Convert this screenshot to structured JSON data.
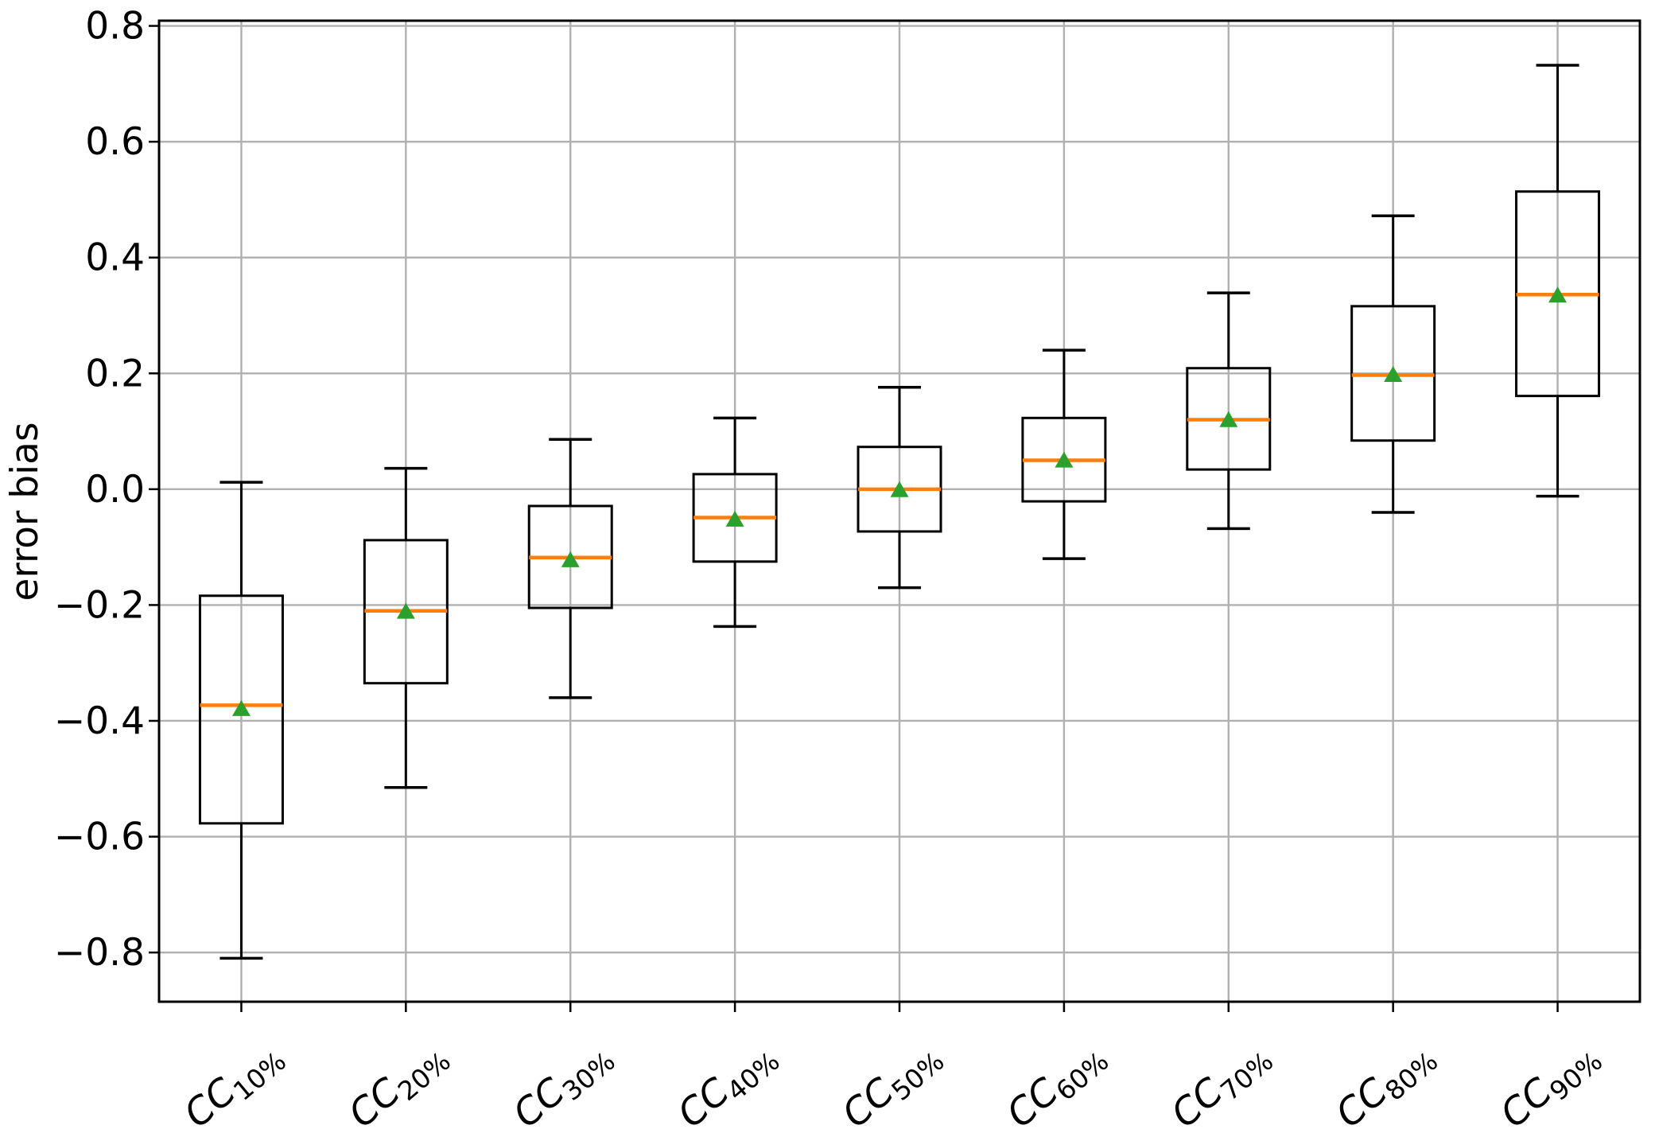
{
  "figure": {
    "background": "#ffffff",
    "title": ""
  },
  "chart_data": {
    "type": "boxplot",
    "title": "",
    "xlabel": "",
    "ylabel": "error bias",
    "grid": true,
    "legend": null,
    "ylim": [
      -0.885,
      0.809
    ],
    "yticks": [
      0.8,
      0.6,
      0.4,
      0.2,
      0.0,
      -0.2,
      -0.4,
      -0.6,
      -0.8
    ],
    "ytick_labels": [
      "0.8",
      "0.6",
      "0.4",
      "0.2",
      "0.0",
      "−0.2",
      "−0.4",
      "−0.6",
      "−0.8"
    ],
    "categories": [
      "CC 10%",
      "CC 20%",
      "CC 30%",
      "CC 40%",
      "CC 50%",
      "CC 60%",
      "CC 70%",
      "CC 80%",
      "CC 90%"
    ],
    "boxes": [
      {
        "label_base": "CC",
        "label_sub": "10%",
        "whislo": -0.81,
        "q1": -0.577,
        "med": -0.373,
        "mean": -0.38,
        "q3": -0.184,
        "whishi": 0.012
      },
      {
        "label_base": "CC",
        "label_sub": "20%",
        "whislo": -0.515,
        "q1": -0.335,
        "med": -0.21,
        "mean": -0.212,
        "q3": -0.088,
        "whishi": 0.036
      },
      {
        "label_base": "CC",
        "label_sub": "30%",
        "whislo": -0.36,
        "q1": -0.205,
        "med": -0.118,
        "mean": -0.123,
        "q3": -0.029,
        "whishi": 0.086
      },
      {
        "label_base": "CC",
        "label_sub": "40%",
        "whislo": -0.237,
        "q1": -0.125,
        "med": -0.049,
        "mean": -0.053,
        "q3": 0.026,
        "whishi": 0.123
      },
      {
        "label_base": "CC",
        "label_sub": "50%",
        "whislo": -0.17,
        "q1": -0.073,
        "med": 0.0,
        "mean": -0.002,
        "q3": 0.073,
        "whishi": 0.176
      },
      {
        "label_base": "CC",
        "label_sub": "60%",
        "whislo": -0.12,
        "q1": -0.021,
        "med": 0.05,
        "mean": 0.049,
        "q3": 0.123,
        "whishi": 0.24
      },
      {
        "label_base": "CC",
        "label_sub": "70%",
        "whislo": -0.068,
        "q1": 0.034,
        "med": 0.12,
        "mean": 0.119,
        "q3": 0.209,
        "whishi": 0.339
      },
      {
        "label_base": "CC",
        "label_sub": "80%",
        "whislo": -0.04,
        "q1": 0.084,
        "med": 0.197,
        "mean": 0.197,
        "q3": 0.316,
        "whishi": 0.472
      },
      {
        "label_base": "CC",
        "label_sub": "90%",
        "whislo": -0.012,
        "q1": 0.161,
        "med": 0.336,
        "mean": 0.334,
        "q3": 0.514,
        "whishi": 0.732
      }
    ],
    "colors": {
      "box": "#000000",
      "whisker": "#000000",
      "median": "#ff7f0e",
      "mean_marker": "#2ca02c",
      "grid": "#b0b0b0",
      "spine": "#000000",
      "background": "#ffffff"
    }
  }
}
